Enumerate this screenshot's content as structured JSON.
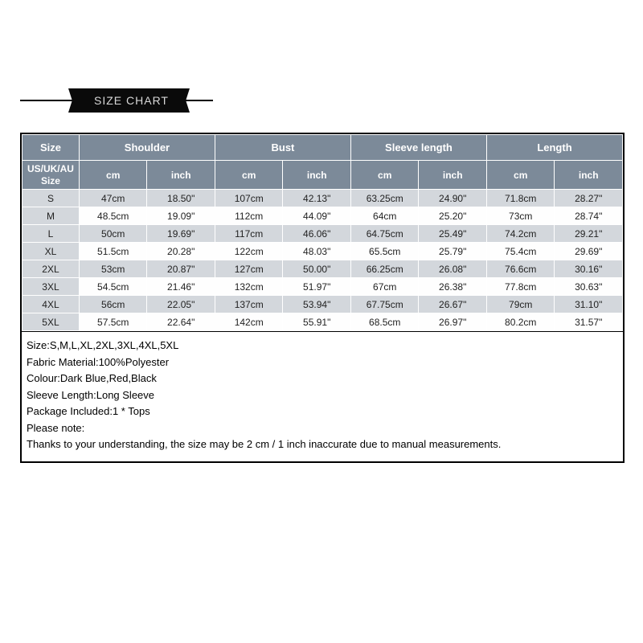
{
  "banner": {
    "title": "SIZE CHART"
  },
  "table": {
    "type": "table",
    "header_bg": "#7c8a99",
    "header_fg": "#ffffff",
    "alt_row_bg": "#d3d7dc",
    "row_bg": "#fefefe",
    "border_color": "#ffffff",
    "outer_border": "#000000",
    "columns_top": [
      "Size",
      "Shoulder",
      "Bust",
      "Sleeve length",
      "Length"
    ],
    "size_sub_label": "US/UK/AU Size",
    "unit_labels": [
      "cm",
      "inch"
    ],
    "rows": [
      {
        "size": "S",
        "shoulder_cm": "47cm",
        "shoulder_in": "18.50\"",
        "bust_cm": "107cm",
        "bust_in": "42.13\"",
        "sleeve_cm": "63.25cm",
        "sleeve_in": "24.90\"",
        "length_cm": "71.8cm",
        "length_in": "28.27\""
      },
      {
        "size": "M",
        "shoulder_cm": "48.5cm",
        "shoulder_in": "19.09\"",
        "bust_cm": "112cm",
        "bust_in": "44.09\"",
        "sleeve_cm": "64cm",
        "sleeve_in": "25.20\"",
        "length_cm": "73cm",
        "length_in": "28.74\""
      },
      {
        "size": "L",
        "shoulder_cm": "50cm",
        "shoulder_in": "19.69\"",
        "bust_cm": "117cm",
        "bust_in": "46.06\"",
        "sleeve_cm": "64.75cm",
        "sleeve_in": "25.49\"",
        "length_cm": "74.2cm",
        "length_in": "29.21\""
      },
      {
        "size": "XL",
        "shoulder_cm": "51.5cm",
        "shoulder_in": "20.28\"",
        "bust_cm": "122cm",
        "bust_in": "48.03\"",
        "sleeve_cm": "65.5cm",
        "sleeve_in": "25.79\"",
        "length_cm": "75.4cm",
        "length_in": "29.69\""
      },
      {
        "size": "2XL",
        "shoulder_cm": "53cm",
        "shoulder_in": "20.87\"",
        "bust_cm": "127cm",
        "bust_in": "50.00\"",
        "sleeve_cm": "66.25cm",
        "sleeve_in": "26.08\"",
        "length_cm": "76.6cm",
        "length_in": "30.16\""
      },
      {
        "size": "3XL",
        "shoulder_cm": "54.5cm",
        "shoulder_in": "21.46\"",
        "bust_cm": "132cm",
        "bust_in": "51.97\"",
        "sleeve_cm": "67cm",
        "sleeve_in": "26.38\"",
        "length_cm": "77.8cm",
        "length_in": "30.63\""
      },
      {
        "size": "4XL",
        "shoulder_cm": "56cm",
        "shoulder_in": "22.05\"",
        "bust_cm": "137cm",
        "bust_in": "53.94\"",
        "sleeve_cm": "67.75cm",
        "sleeve_in": "26.67\"",
        "length_cm": "79cm",
        "length_in": "31.10\""
      },
      {
        "size": "5XL",
        "shoulder_cm": "57.5cm",
        "shoulder_in": "22.64\"",
        "bust_cm": "142cm",
        "bust_in": "55.91\"",
        "sleeve_cm": "68.5cm",
        "sleeve_in": "26.97\"",
        "length_cm": "80.2cm",
        "length_in": "31.57\""
      }
    ]
  },
  "notes": {
    "lines": [
      "Size:S,M,L,XL,2XL,3XL,4XL,5XL",
      "Fabric Material:100%Polyester",
      "Colour:Dark Blue,Red,Black",
      "Sleeve Length:Long Sleeve",
      "Package Included:1 * Tops",
      "Please note:",
      "Thanks to your understanding, the size may be 2 cm / 1 inch inaccurate due to manual measurements."
    ]
  }
}
